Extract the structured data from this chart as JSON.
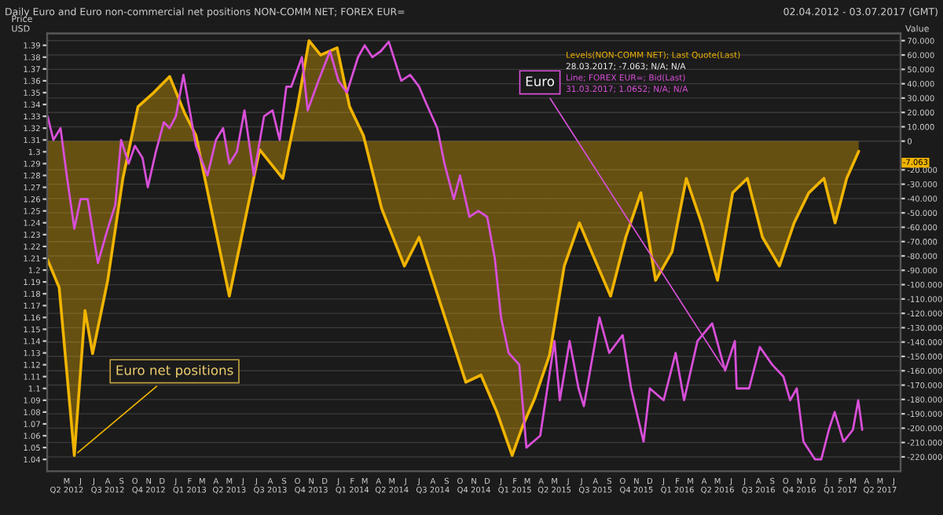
{
  "chart_data": {
    "type": "line",
    "title": "Daily Euro and Euro non-commercial net positions NON-COMM NET; FOREX EUR=",
    "subtitle": "02.04.2012 - 03.07.2017 (GMT)",
    "ylabel": "Price\nUSD",
    "y2label": "Value",
    "xlim": [
      "2012-04-01",
      "2017-06-30"
    ],
    "ylim": [
      1.03,
      1.4
    ],
    "yticks": [
      1.04,
      1.05,
      1.06,
      1.07,
      1.08,
      1.09,
      1.1,
      1.11,
      1.12,
      1.13,
      1.14,
      1.15,
      1.16,
      1.17,
      1.18,
      1.19,
      1.2,
      1.21,
      1.22,
      1.23,
      1.24,
      1.25,
      1.26,
      1.27,
      1.28,
      1.29,
      1.3,
      1.31,
      1.32,
      1.33,
      1.34,
      1.35,
      1.36,
      1.37,
      1.38,
      1.39
    ],
    "y2lim": [
      -230,
      75
    ],
    "y2ticks": [
      {
        "value": -220,
        "label": "-220.000"
      },
      {
        "value": -210,
        "label": "-210.000"
      },
      {
        "value": -200,
        "label": "-200.000"
      },
      {
        "value": -190,
        "label": "-190.000"
      },
      {
        "value": -180,
        "label": "-180.000"
      },
      {
        "value": -170,
        "label": "-170.000"
      },
      {
        "value": -160,
        "label": "-160.000"
      },
      {
        "value": -150,
        "label": "-150.000"
      },
      {
        "value": -140,
        "label": "-140.000"
      },
      {
        "value": -130,
        "label": "-130.000"
      },
      {
        "value": -120,
        "label": "-120.000"
      },
      {
        "value": -110,
        "label": "-110.000"
      },
      {
        "value": -100,
        "label": "-100.000"
      },
      {
        "value": -90,
        "label": "-90.000"
      },
      {
        "value": -80,
        "label": "-80.000"
      },
      {
        "value": -70,
        "label": "-70.000"
      },
      {
        "value": -60,
        "label": "-60.000"
      },
      {
        "value": -50,
        "label": "-50.000"
      },
      {
        "value": -40,
        "label": "-40.000"
      },
      {
        "value": -30,
        "label": "-30.000"
      },
      {
        "value": -20,
        "label": "-20.000"
      },
      {
        "value": 0,
        "label": "0"
      },
      {
        "value": 10,
        "label": "10.000"
      },
      {
        "value": 20,
        "label": "20.000"
      },
      {
        "value": 30,
        "label": "30.000"
      },
      {
        "value": 40,
        "label": "40.000"
      },
      {
        "value": 50,
        "label": "50.000"
      },
      {
        "value": 60,
        "label": "60.000"
      },
      {
        "value": 70,
        "label": "70.000"
      }
    ],
    "xticks": [
      {
        "value": "2012-05-15",
        "label": "M\nQ2 2012"
      },
      {
        "value": "2012-06-15",
        "label": "J"
      },
      {
        "value": "2012-07-15",
        "label": "J"
      },
      {
        "value": "2012-08-15",
        "label": "A\nQ3 2012"
      },
      {
        "value": "2012-09-15",
        "label": "S"
      },
      {
        "value": "2012-10-15",
        "label": "O"
      },
      {
        "value": "2012-11-15",
        "label": "N\nQ4 2012"
      },
      {
        "value": "2012-12-15",
        "label": "D"
      },
      {
        "value": "2013-01-15",
        "label": "J"
      },
      {
        "value": "2013-02-15",
        "label": "F\nQ1 2013"
      },
      {
        "value": "2013-03-15",
        "label": "M"
      },
      {
        "value": "2013-04-15",
        "label": "A"
      },
      {
        "value": "2013-05-15",
        "label": "M\nQ2 2013"
      },
      {
        "value": "2013-06-15",
        "label": "J"
      },
      {
        "value": "2013-07-15",
        "label": "J"
      },
      {
        "value": "2013-08-15",
        "label": "A\nQ3 2013"
      },
      {
        "value": "2013-09-15",
        "label": "S"
      },
      {
        "value": "2013-10-15",
        "label": "O"
      },
      {
        "value": "2013-11-15",
        "label": "N\nQ4 2013"
      },
      {
        "value": "2013-12-15",
        "label": "D"
      },
      {
        "value": "2014-01-15",
        "label": "J"
      },
      {
        "value": "2014-02-15",
        "label": "F\nQ1 2014"
      },
      {
        "value": "2014-03-15",
        "label": "M"
      },
      {
        "value": "2014-04-15",
        "label": "A"
      },
      {
        "value": "2014-05-15",
        "label": "M\nQ2 2014"
      },
      {
        "value": "2014-06-15",
        "label": "J"
      },
      {
        "value": "2014-07-15",
        "label": "J"
      },
      {
        "value": "2014-08-15",
        "label": "A\nQ3 2014"
      },
      {
        "value": "2014-09-15",
        "label": "S"
      },
      {
        "value": "2014-10-15",
        "label": "O"
      },
      {
        "value": "2014-11-15",
        "label": "N\nQ4 2014"
      },
      {
        "value": "2014-12-15",
        "label": "D"
      },
      {
        "value": "2015-01-15",
        "label": "J"
      },
      {
        "value": "2015-02-15",
        "label": "F\nQ1 2015"
      },
      {
        "value": "2015-03-15",
        "label": "M"
      },
      {
        "value": "2015-04-15",
        "label": "A"
      },
      {
        "value": "2015-05-15",
        "label": "M\nQ2 2015"
      },
      {
        "value": "2015-06-15",
        "label": "J"
      },
      {
        "value": "2015-07-15",
        "label": "J"
      },
      {
        "value": "2015-08-15",
        "label": "A\nQ3 2015"
      },
      {
        "value": "2015-09-15",
        "label": "S"
      },
      {
        "value": "2015-10-15",
        "label": "O"
      },
      {
        "value": "2015-11-15",
        "label": "N\nQ4 2015"
      },
      {
        "value": "2015-12-15",
        "label": "D"
      },
      {
        "value": "2016-01-15",
        "label": "J"
      },
      {
        "value": "2016-02-15",
        "label": "F\nQ1 2016"
      },
      {
        "value": "2016-03-15",
        "label": "M"
      },
      {
        "value": "2016-04-15",
        "label": "A"
      },
      {
        "value": "2016-05-15",
        "label": "M\nQ2 2016"
      },
      {
        "value": "2016-06-15",
        "label": "J"
      },
      {
        "value": "2016-07-15",
        "label": "J"
      },
      {
        "value": "2016-08-15",
        "label": "A\nQ3 2016"
      },
      {
        "value": "2016-09-15",
        "label": "S"
      },
      {
        "value": "2016-10-15",
        "label": "O"
      },
      {
        "value": "2016-11-15",
        "label": "N\nQ4 2016"
      },
      {
        "value": "2016-12-15",
        "label": "D"
      },
      {
        "value": "2017-01-15",
        "label": "J"
      },
      {
        "value": "2017-02-15",
        "label": "F\nQ1 2017"
      },
      {
        "value": "2017-03-15",
        "label": "M"
      },
      {
        "value": "2017-04-15",
        "label": "A"
      },
      {
        "value": "2017-05-15",
        "label": "M\nQ2 2017"
      },
      {
        "value": "2017-06-15",
        "label": "J"
      }
    ],
    "grid": true,
    "legend": false,
    "series": [
      {
        "name": "Euro net positions",
        "type": "area",
        "axis": "y2",
        "color": "#f0b400",
        "x": [
          "2012-04-01",
          "2012-04-28",
          "2012-06-01",
          "2012-06-25",
          "2012-07-12",
          "2012-08-15",
          "2012-09-18",
          "2012-10-22",
          "2012-11-27",
          "2013-01-01",
          "2013-02-03",
          "2013-03-01",
          "2013-05-15",
          "2013-07-22",
          "2013-09-12",
          "2013-10-15",
          "2013-11-10",
          "2013-12-06",
          "2014-01-12",
          "2014-02-09",
          "2014-03-12",
          "2014-04-22",
          "2014-06-12",
          "2014-07-15",
          "2014-09-06",
          "2014-10-28",
          "2014-12-01",
          "2015-01-06",
          "2015-02-09",
          "2015-03-04",
          "2015-04-01",
          "2015-05-04",
          "2015-06-06",
          "2015-07-10",
          "2015-08-06",
          "2015-09-18",
          "2015-10-22",
          "2015-11-25",
          "2015-12-28",
          "2016-02-03",
          "2016-03-06",
          "2016-04-09",
          "2016-05-15",
          "2016-06-18",
          "2016-07-21",
          "2016-08-24",
          "2016-10-01",
          "2016-11-03",
          "2016-12-06",
          "2017-01-09",
          "2017-02-03",
          "2017-03-01",
          "2017-03-28"
        ],
        "values": [
          -82,
          -102,
          -219,
          -118,
          -148,
          -97,
          -26,
          24,
          34,
          45,
          20,
          4,
          -108,
          -6,
          -26,
          24,
          70,
          60,
          65,
          24,
          4,
          -47,
          -87,
          -67,
          -118,
          -168,
          -163,
          -189,
          -219,
          -199,
          -179,
          -149,
          -87,
          -57,
          -77,
          -108,
          -67,
          -36,
          -97,
          -77,
          -26,
          -57,
          -97,
          -36,
          -26,
          -67,
          -87,
          -57,
          -36,
          -26,
          -57,
          -26,
          -7.063
        ]
      },
      {
        "name": "Euro",
        "color": "#d84fd8",
        "x": [
          "2012-04-02",
          "2012-04-15",
          "2012-05-01",
          "2012-05-15",
          "2012-06-01",
          "2012-06-15",
          "2012-07-01",
          "2012-07-24",
          "2012-08-15",
          "2012-09-01",
          "2012-09-14",
          "2012-10-01",
          "2012-10-15",
          "2012-11-01",
          "2012-11-13",
          "2012-12-01",
          "2012-12-19",
          "2013-01-01",
          "2013-01-15",
          "2013-02-01",
          "2013-02-15",
          "2013-03-01",
          "2013-03-27",
          "2013-04-15",
          "2013-05-01",
          "2013-05-15",
          "2013-06-01",
          "2013-06-18",
          "2013-07-09",
          "2013-08-01",
          "2013-08-20",
          "2013-09-05",
          "2013-09-20",
          "2013-10-01",
          "2013-10-25",
          "2013-11-07",
          "2013-12-01",
          "2013-12-27",
          "2014-01-15",
          "2014-02-03",
          "2014-02-28",
          "2014-03-15",
          "2014-04-01",
          "2014-04-20",
          "2014-05-08",
          "2014-06-05",
          "2014-06-25",
          "2014-07-15",
          "2014-08-01",
          "2014-08-25",
          "2014-09-10",
          "2014-10-01",
          "2014-10-15",
          "2014-11-05",
          "2014-11-25",
          "2014-12-15",
          "2015-01-01",
          "2015-01-15",
          "2015-02-01",
          "2015-02-25",
          "2015-03-13",
          "2015-04-13",
          "2015-05-15",
          "2015-05-27",
          "2015-06-18",
          "2015-07-08",
          "2015-07-20",
          "2015-08-24",
          "2015-09-15",
          "2015-10-15",
          "2015-11-03",
          "2015-12-01",
          "2015-12-15",
          "2016-01-15",
          "2016-02-11",
          "2016-03-01",
          "2016-03-31",
          "2016-05-03",
          "2016-06-01",
          "2016-06-23",
          "2016-06-27",
          "2016-07-25",
          "2016-08-18",
          "2016-09-15",
          "2016-10-10",
          "2016-10-25",
          "2016-11-09",
          "2016-11-24",
          "2016-12-20",
          "2017-01-03",
          "2017-01-20",
          "2017-02-02",
          "2017-02-22",
          "2017-03-15",
          "2017-03-27",
          "2017-04-05"
        ],
        "values": [
          1.33,
          1.31,
          1.32,
          1.28,
          1.235,
          1.26,
          1.26,
          1.206,
          1.235,
          1.255,
          1.31,
          1.29,
          1.305,
          1.295,
          1.27,
          1.3,
          1.325,
          1.32,
          1.33,
          1.365,
          1.335,
          1.305,
          1.28,
          1.31,
          1.32,
          1.29,
          1.3,
          1.335,
          1.28,
          1.33,
          1.335,
          1.31,
          1.355,
          1.355,
          1.38,
          1.335,
          1.36,
          1.385,
          1.36,
          1.35,
          1.38,
          1.39,
          1.38,
          1.385,
          1.393,
          1.36,
          1.365,
          1.355,
          1.34,
          1.32,
          1.29,
          1.26,
          1.28,
          1.245,
          1.25,
          1.245,
          1.21,
          1.16,
          1.13,
          1.12,
          1.05,
          1.06,
          1.14,
          1.09,
          1.14,
          1.1,
          1.085,
          1.16,
          1.13,
          1.145,
          1.1,
          1.055,
          1.1,
          1.09,
          1.13,
          1.09,
          1.14,
          1.155,
          1.115,
          1.14,
          1.1,
          1.1,
          1.135,
          1.12,
          1.11,
          1.09,
          1.1,
          1.055,
          1.04,
          1.04,
          1.065,
          1.08,
          1.055,
          1.065,
          1.09,
          1.065
        ]
      }
    ],
    "annotations": [
      "Levels(NON-COMM NET); Last Quote(Last)",
      "28.03.2017; -7.063; N/A; N/A",
      "Line; FOREX EUR=; Bid(Last)",
      "31.03.2017; 1.0652; N/A; N/A",
      "-7.063"
    ]
  }
}
